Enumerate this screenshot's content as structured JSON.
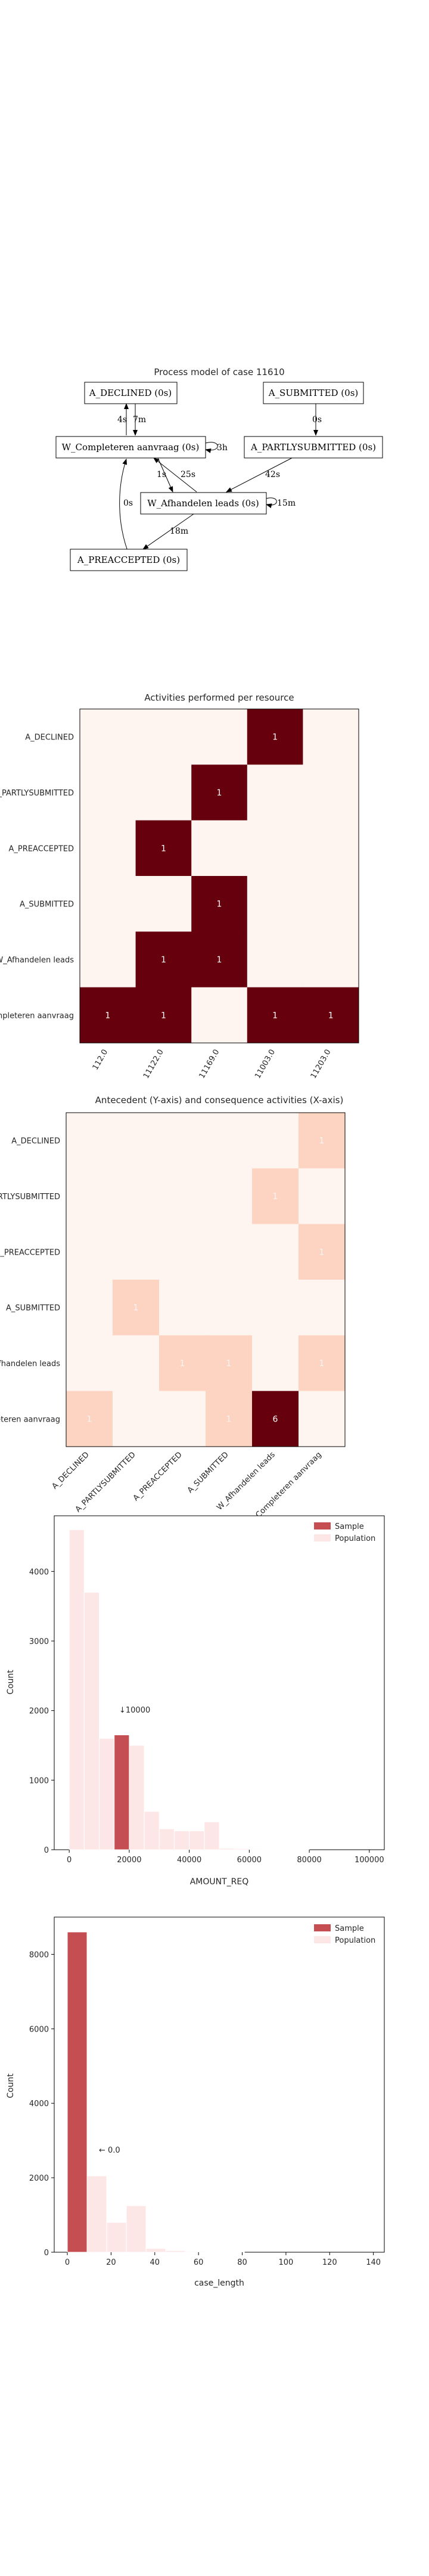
{
  "process_model": {
    "title": "Process model of case 11610",
    "nodes": [
      {
        "id": "n1",
        "label": "A_DECLINED (0s)"
      },
      {
        "id": "n2",
        "label": "A_SUBMITTED (0s)"
      },
      {
        "id": "n3",
        "label": "W_Completeren aanvraag (0s)"
      },
      {
        "id": "n4",
        "label": "A_PARTLYSUBMITTED (0s)"
      },
      {
        "id": "n5",
        "label": "W_Afhandelen leads (0s)"
      },
      {
        "id": "n6",
        "label": "A_PREACCEPTED (0s)"
      }
    ],
    "edges": [
      {
        "id": "e1",
        "label": "4s"
      },
      {
        "id": "e2",
        "label": "7m"
      },
      {
        "id": "e3",
        "label": "3h"
      },
      {
        "id": "e4",
        "label": "0s"
      },
      {
        "id": "e5",
        "label": "1s"
      },
      {
        "id": "e6",
        "label": "25s"
      },
      {
        "id": "e7",
        "label": "42s"
      },
      {
        "id": "e8",
        "label": "0s"
      },
      {
        "id": "e9",
        "label": "15m"
      },
      {
        "id": "e10",
        "label": "18m"
      }
    ]
  },
  "chart_data": [
    {
      "type": "heatmap",
      "title": "Activities performed per resource",
      "rows": [
        "A_DECLINED",
        "A_PARTLYSUBMITTED",
        "A_PREACCEPTED",
        "A_SUBMITTED",
        "W_Afhandelen leads",
        "W_Completeren aanvraag"
      ],
      "cols": [
        "112.0",
        "11122.0",
        "11169.0",
        "11003.0",
        "11203.0"
      ],
      "values": [
        [
          0,
          0,
          0,
          1,
          0
        ],
        [
          0,
          0,
          1,
          0,
          0
        ],
        [
          0,
          1,
          0,
          0,
          0
        ],
        [
          0,
          0,
          1,
          0,
          0
        ],
        [
          0,
          1,
          1,
          0,
          0
        ],
        [
          1,
          1,
          0,
          1,
          1
        ]
      ],
      "max": 1
    },
    {
      "type": "heatmap",
      "title": "Antecedent (Y-axis) and consequence activities (X-axis)",
      "rows": [
        "A_DECLINED",
        "A_PARTLYSUBMITTED",
        "A_PREACCEPTED",
        "A_SUBMITTED",
        "W_Afhandelen leads",
        "W_Completeren aanvraag"
      ],
      "cols": [
        "A_DECLINED",
        "A_PARTLYSUBMITTED",
        "A_PREACCEPTED",
        "A_SUBMITTED",
        "W_Afhandelen leads",
        "W_Completeren aanvraag"
      ],
      "values": [
        [
          0,
          0,
          0,
          0,
          0,
          1
        ],
        [
          0,
          0,
          0,
          0,
          1,
          0
        ],
        [
          0,
          0,
          0,
          0,
          0,
          1
        ],
        [
          0,
          1,
          0,
          0,
          0,
          0
        ],
        [
          0,
          0,
          1,
          1,
          0,
          1
        ],
        [
          1,
          0,
          0,
          1,
          6,
          0
        ]
      ],
      "max": 6
    },
    {
      "type": "bar",
      "title": "",
      "xlabel": "AMOUNT_REQ",
      "ylabel": "Count",
      "xlim": [
        -5000,
        105000
      ],
      "ylim": [
        0,
        4800
      ],
      "xticks": [
        0,
        20000,
        40000,
        60000,
        80000,
        100000
      ],
      "yticks": [
        0,
        1000,
        2000,
        3000,
        4000
      ],
      "bin_width": 5000,
      "series": [
        {
          "name": "Population",
          "bins": [
            [
              0,
              4600
            ],
            [
              5000,
              3700
            ],
            [
              10000,
              1600
            ],
            [
              15000,
              1550
            ],
            [
              20000,
              1500
            ],
            [
              25000,
              550
            ],
            [
              30000,
              300
            ],
            [
              35000,
              270
            ],
            [
              40000,
              270
            ],
            [
              45000,
              400
            ],
            [
              50000,
              20
            ],
            [
              55000,
              15
            ],
            [
              60000,
              10
            ],
            [
              65000,
              5
            ],
            [
              70000,
              5
            ],
            [
              75000,
              3
            ]
          ]
        },
        {
          "name": "Sample",
          "bins": [
            [
              15000,
              1650
            ]
          ]
        }
      ],
      "annotation": "↓10000",
      "legend": "top-right"
    },
    {
      "type": "bar",
      "title": "",
      "xlabel": "case_length",
      "ylabel": "Count",
      "xlim": [
        -6,
        145
      ],
      "ylim": [
        0,
        9000
      ],
      "xticks": [
        0,
        20,
        40,
        60,
        80,
        100,
        120,
        140
      ],
      "yticks": [
        0,
        2000,
        4000,
        6000,
        8000
      ],
      "bin_width": 9,
      "series": [
        {
          "name": "Population",
          "bins": [
            [
              0,
              8600
            ],
            [
              9,
              2050
            ],
            [
              18,
              800
            ],
            [
              27,
              1250
            ],
            [
              36,
              100
            ],
            [
              45,
              40
            ],
            [
              54,
              20
            ],
            [
              63,
              10
            ],
            [
              72,
              5
            ]
          ]
        },
        {
          "name": "Sample",
          "bins": [
            [
              0,
              8600
            ]
          ]
        }
      ],
      "annotation": "← 0.0",
      "legend": "top-right"
    }
  ]
}
